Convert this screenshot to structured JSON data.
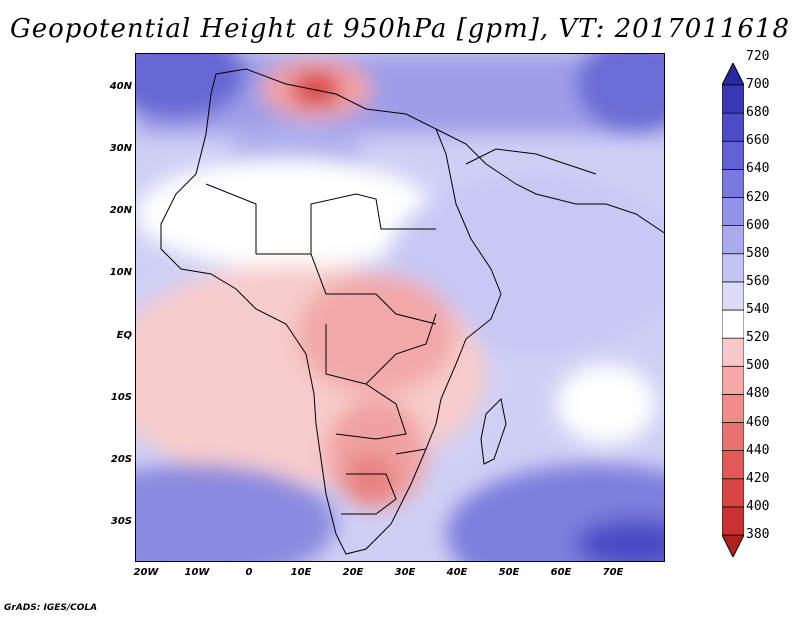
{
  "title": "Geopotential Height at 950hPa [gpm], VT: 2017011618",
  "credit": "GrADS: IGES/COLA",
  "lat_labels": [
    "40N",
    "30N",
    "20N",
    "10N",
    "EQ",
    "10S",
    "20S",
    "30S"
  ],
  "lon_labels": [
    "20W",
    "10W",
    "0",
    "10E",
    "20E",
    "30E",
    "40E",
    "50E",
    "60E",
    "70E"
  ],
  "colorbar": {
    "levels": [
      "380",
      "400",
      "420",
      "440",
      "460",
      "480",
      "500",
      "520",
      "540",
      "560",
      "580",
      "600",
      "620",
      "640",
      "660",
      "680",
      "700",
      "720"
    ],
    "colors": [
      "#b21f1f",
      "#c83232",
      "#d84545",
      "#e05a5a",
      "#e87272",
      "#ef8c8c",
      "#f4a8a8",
      "#f8c8c8",
      "#ffffff",
      "#dcdcf8",
      "#c4c4f4",
      "#aaaaee",
      "#9292e6",
      "#7a7ade",
      "#6262d2",
      "#4c4cc4",
      "#3838b4",
      "#2828a0"
    ]
  }
}
